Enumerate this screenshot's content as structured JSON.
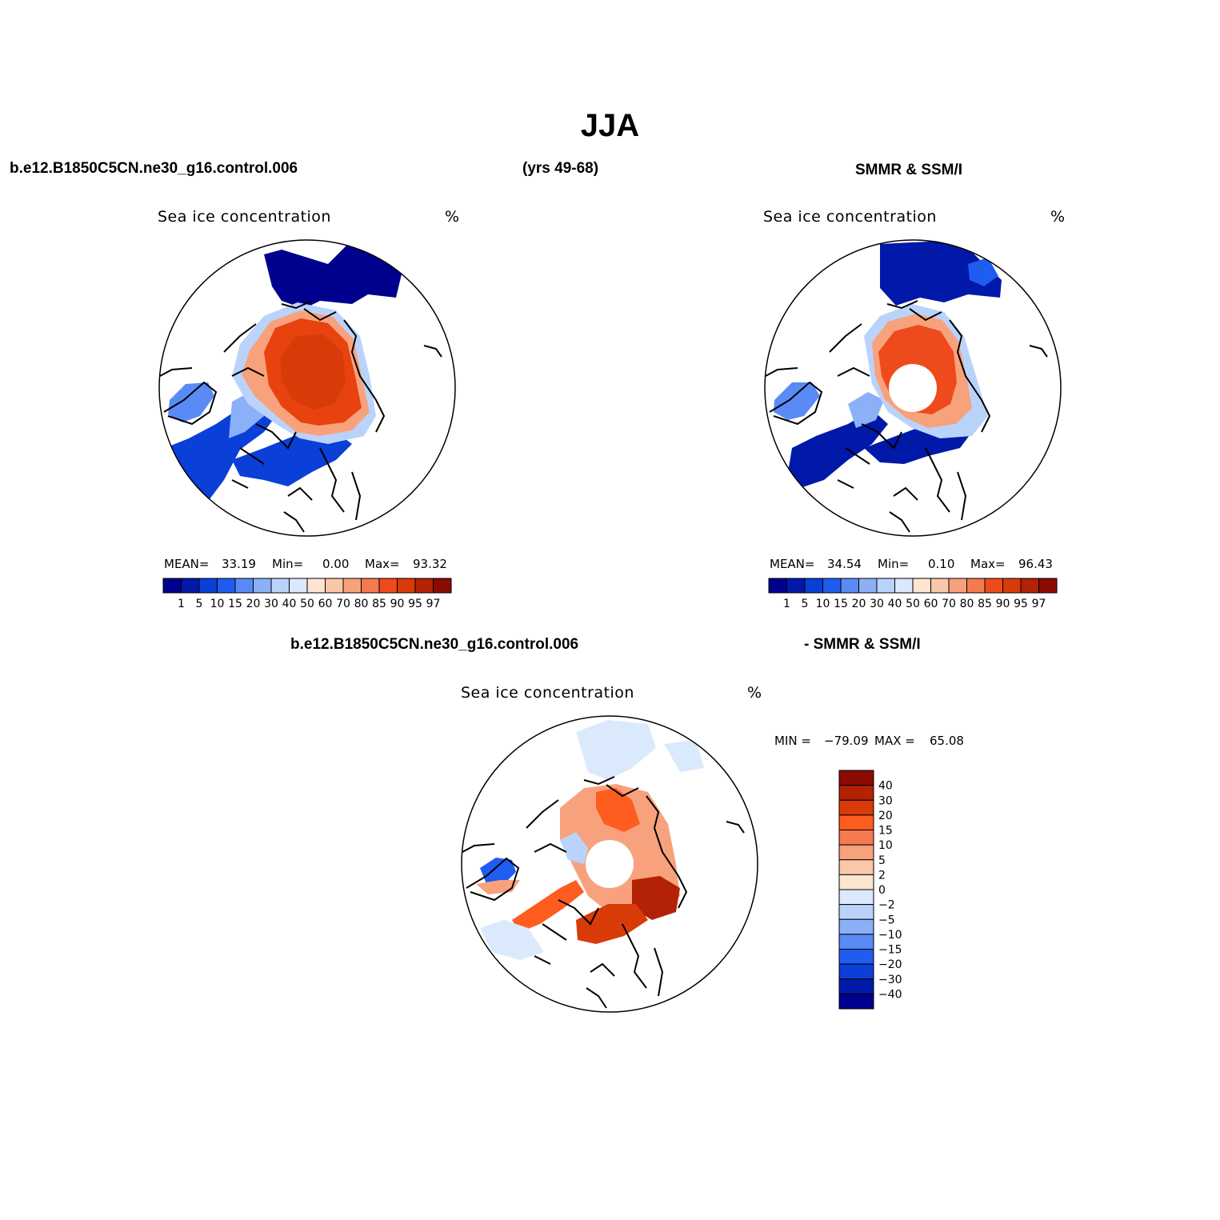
{
  "title": "JJA",
  "header": {
    "case_name": "b.e12.B1850C5CN.ne30_g16.control.006",
    "years": "(yrs 49-68)",
    "obs_name": "SMMR & SSM/I",
    "diff_case": "b.e12.B1850C5CN.ne30_g16.control.006",
    "diff_obs": "- SMMR & SSM/I"
  },
  "panels": [
    {
      "title": "Sea ice concentration",
      "units": "%",
      "stats": {
        "mean_label": "MEAN=",
        "mean": "33.19",
        "min_label": "Min=",
        "min": "0.00",
        "max_label": "Max=",
        "max": "93.32"
      }
    },
    {
      "title": "Sea ice concentration",
      "units": "%",
      "stats": {
        "mean_label": "MEAN=",
        "mean": "34.54",
        "min_label": "Min=",
        "min": "0.10",
        "max_label": "Max=",
        "max": "96.43"
      }
    },
    {
      "title": "Sea ice concentration",
      "units": "%",
      "stats": {
        "min_label": "MIN =",
        "min": "−79.09",
        "max_label": "MAX =",
        "max": "65.08"
      }
    }
  ],
  "colorbar": {
    "labels": [
      "1",
      "5",
      "10",
      "15",
      "20",
      "30",
      "40",
      "50",
      "60",
      "70",
      "80",
      "85",
      "90",
      "95",
      "97"
    ],
    "colors": [
      "#00008f",
      "#0019a8",
      "#0a3fd8",
      "#1f5cf0",
      "#5a8af5",
      "#8cb0f8",
      "#bad3fb",
      "#dbe9fd",
      "#fde5d2",
      "#fbc7a9",
      "#f7a27c",
      "#f57a4f",
      "#ef4a1c",
      "#d83b08",
      "#b32205",
      "#8b0a02"
    ]
  },
  "diff_colorbar": {
    "labels": [
      "40",
      "30",
      "20",
      "15",
      "10",
      "5",
      "2",
      "0",
      "−2",
      "−5",
      "−10",
      "−15",
      "−20",
      "−30",
      "−40"
    ],
    "colors": [
      "#8b0a02",
      "#b32205",
      "#d83b08",
      "#ff5c1f",
      "#f57a4f",
      "#f7a27c",
      "#fbc7a9",
      "#fde5d2",
      "#dbe9fd",
      "#bad3fb",
      "#8cb0f8",
      "#5a8af5",
      "#1f5cf0",
      "#0a3fd8",
      "#0019a8",
      "#00008f"
    ]
  }
}
